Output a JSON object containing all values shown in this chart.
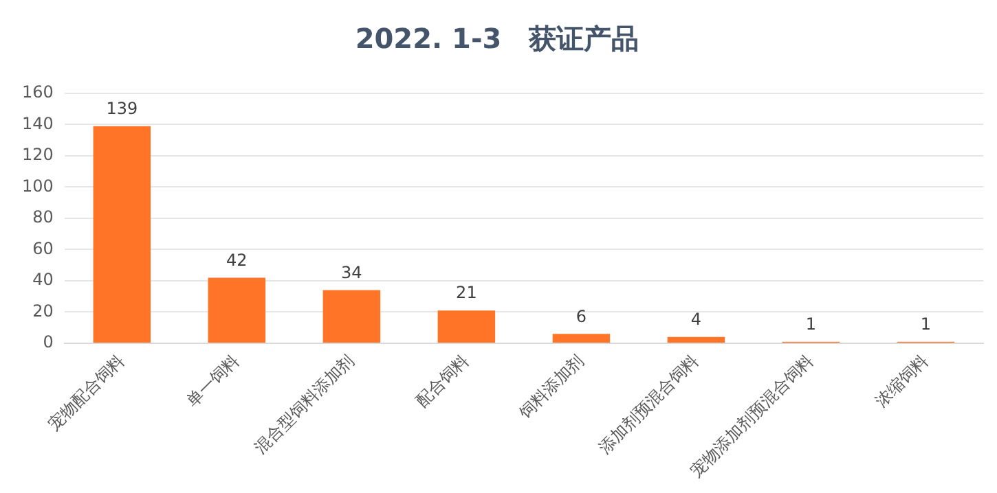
{
  "chart_data": {
    "type": "bar",
    "title": "2022. 1-3　获证产品",
    "categories": [
      "宠物配合饲料",
      "单一饲料",
      "混合型饲料添加剂",
      "配合饲料",
      "饲料添加剂",
      "添加剂预混合饲料",
      "宠物添加剂预混合饲料",
      "浓缩饲料"
    ],
    "values": [
      139,
      42,
      34,
      21,
      6,
      4,
      1,
      1
    ],
    "color": "#ff7426",
    "ylim": [
      0,
      160
    ],
    "yticks": [
      0,
      20,
      40,
      60,
      80,
      100,
      120,
      140,
      160
    ],
    "grid": "y",
    "data_labels": true
  }
}
